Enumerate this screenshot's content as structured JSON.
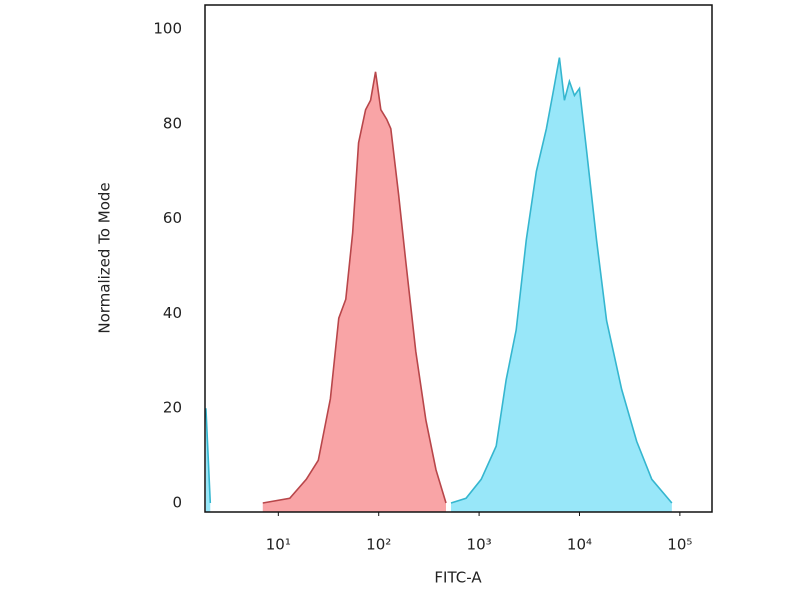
{
  "chart_data": {
    "type": "histogram-overlay",
    "x_label": "FITC-A",
    "y_label": "Normalized To Mode",
    "xscale": "log",
    "xlim": [
      1.86,
      209000
    ],
    "ylim": [
      -1.9,
      105.1
    ],
    "xticks": [
      {
        "value": 10,
        "label": "10¹"
      },
      {
        "value": 100,
        "label": "10²"
      },
      {
        "value": 1000,
        "label": "10³"
      },
      {
        "value": 10000,
        "label": "10⁴"
      },
      {
        "value": 100000,
        "label": "10⁵"
      }
    ],
    "yticks": [
      0,
      20,
      40,
      60,
      80,
      100
    ],
    "grid": false,
    "series": [
      {
        "color": "#b8464a",
        "fill": "#f89a9c",
        "x": [
          7,
          13,
          19,
          25,
          33,
          40,
          47,
          55,
          63,
          74,
          83,
          93,
          105,
          120,
          132,
          158,
          186,
          234,
          295,
          372,
          468
        ],
        "values": [
          0,
          1,
          5,
          9,
          22,
          39,
          43,
          57,
          76,
          83,
          85,
          91,
          83,
          81,
          79,
          65,
          51,
          32,
          17.5,
          7,
          0
        ]
      },
      {
        "color": "#35b6cf",
        "fill": "#8de4f8",
        "x": [
          1.9,
          2.1,
          null,
          525,
          741,
          1050,
          1480,
          1860,
          2340,
          2950,
          3720,
          4680,
          5500,
          6310,
          7080,
          7940,
          8910,
          10000,
          11750,
          14790,
          18620,
          26300,
          37150,
          52500,
          83200
        ],
        "values": [
          20,
          0,
          null,
          0,
          1,
          5,
          12,
          26,
          36.5,
          55.5,
          70,
          79,
          87,
          94,
          85,
          89,
          86,
          87.5,
          74.5,
          55.5,
          38.5,
          24,
          13,
          5,
          0
        ]
      }
    ]
  }
}
